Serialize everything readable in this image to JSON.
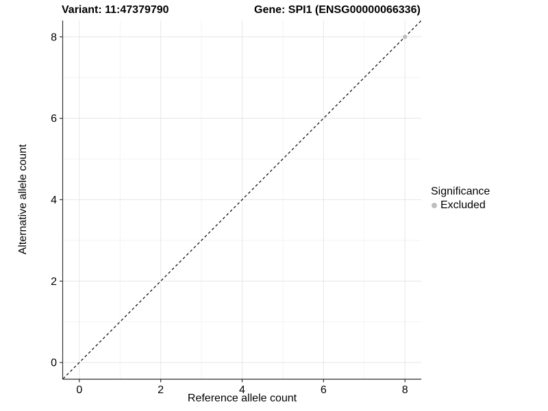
{
  "chart_data": {
    "type": "scatter",
    "title_left": "Variant: 11:47379790",
    "title_right": "Gene: SPI1 (ENSG00000066336)",
    "xlabel": "Reference allele count",
    "ylabel": "Alternative allele count",
    "xlim": [
      -0.4,
      8.4
    ],
    "ylim": [
      -0.4,
      8.4
    ],
    "x_ticks": [
      0,
      2,
      4,
      6,
      8
    ],
    "y_ticks": [
      0,
      2,
      4,
      6,
      8
    ],
    "x_minor_ticks": [
      1,
      3,
      5,
      7
    ],
    "y_minor_ticks": [
      1,
      3,
      5,
      7
    ],
    "grid": true,
    "series": [
      {
        "name": "Excluded",
        "color": "#bebebe",
        "points": [
          [
            8,
            8
          ]
        ]
      }
    ],
    "reference_line": {
      "type": "identity",
      "slope": 1,
      "intercept": 0,
      "style": "dashed",
      "color": "#000000"
    },
    "legend": {
      "title": "Significance",
      "position": "right",
      "items": [
        {
          "label": "Excluded",
          "color": "#bebebe"
        }
      ]
    },
    "colors": {
      "background": "#ffffff",
      "panel_background": "#ffffff",
      "major_grid": "#e6e6e6",
      "minor_grid": "#f3f3f3",
      "axis_line": "#333333",
      "tick_mark": "#333333",
      "text": "#000000",
      "point": "#bebebe"
    }
  }
}
